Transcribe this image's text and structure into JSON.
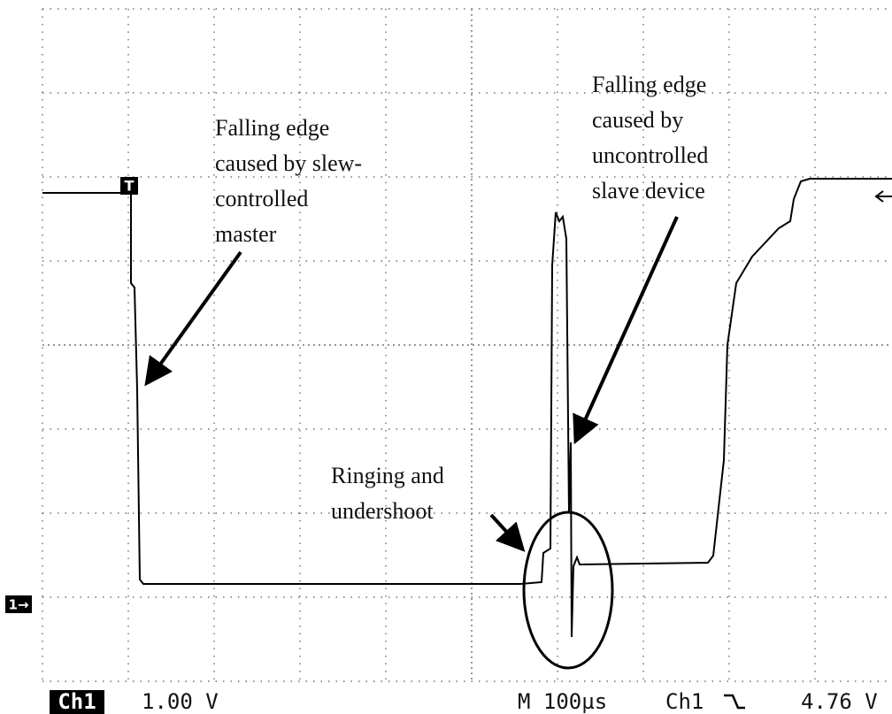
{
  "trigger_marker": "T",
  "channel_marker": "1→",
  "annotations": [
    {
      "lines": [
        "Falling edge",
        "caused by slew-",
        "controlled",
        "master"
      ]
    },
    {
      "lines": [
        "Falling edge",
        "caused by",
        "uncontrolled",
        "slave device"
      ]
    },
    {
      "lines": [
        "Ringing and",
        "undershoot"
      ]
    }
  ],
  "status": {
    "channel": "Ch1",
    "volts_per_div": "1.00 V",
    "timebase": "M 100µs",
    "trigger_source": "Ch1",
    "trigger_level": "4.76 V"
  }
}
